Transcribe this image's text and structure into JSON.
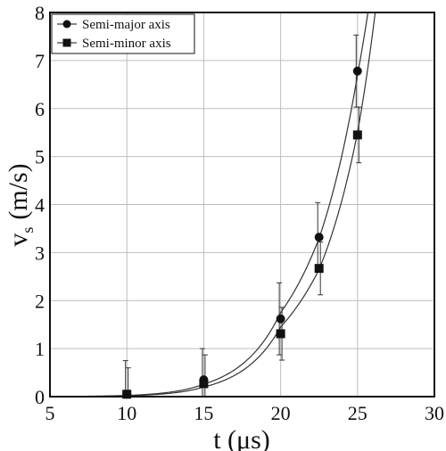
{
  "chart_data": {
    "type": "scatter",
    "title": "",
    "xlabel": "t (μs)",
    "ylabel": "v",
    "ylabel_subscript": "s",
    "ylabel_units": "(m/s)",
    "xlim": [
      5,
      30
    ],
    "ylim": [
      0,
      8
    ],
    "x_ticks": [
      "5",
      "10",
      "15",
      "20",
      "25",
      "30"
    ],
    "y_ticks": [
      "0",
      "1",
      "2",
      "3",
      "4",
      "5",
      "6",
      "7",
      "8"
    ],
    "grid": true,
    "legend_position": "top-left",
    "series": [
      {
        "name": "Semi-major axis",
        "marker": "circle",
        "points": [
          {
            "x": 10,
            "y": 0.05,
            "err": 0.7
          },
          {
            "x": 15,
            "y": 0.35,
            "err": 0.65
          },
          {
            "x": 20,
            "y": 1.62,
            "err": 0.75
          },
          {
            "x": 22.5,
            "y": 3.32,
            "err": 0.72
          },
          {
            "x": 25,
            "y": 6.78,
            "err": 0.75
          }
        ],
        "fit_curve": [
          {
            "x": 5,
            "y": 0.003
          },
          {
            "x": 10,
            "y": 0.025
          },
          {
            "x": 15,
            "y": 0.26
          },
          {
            "x": 20,
            "y": 1.75
          },
          {
            "x": 22.5,
            "y": 3.3
          },
          {
            "x": 25,
            "y": 6.7
          },
          {
            "x": 26,
            "y": 8.7
          }
        ]
      },
      {
        "name": "Semi-minor axis",
        "marker": "square",
        "points": [
          {
            "x": 10,
            "y": 0.05,
            "err": 0.55
          },
          {
            "x": 15,
            "y": 0.27,
            "err": 0.6
          },
          {
            "x": 20,
            "y": 1.31,
            "err": 0.55
          },
          {
            "x": 22.5,
            "y": 2.67,
            "err": 0.55
          },
          {
            "x": 25,
            "y": 5.45,
            "err": 0.58
          }
        ],
        "fit_curve": [
          {
            "x": 5,
            "y": 0.002
          },
          {
            "x": 10,
            "y": 0.018
          },
          {
            "x": 15,
            "y": 0.2
          },
          {
            "x": 20,
            "y": 1.45
          },
          {
            "x": 22.5,
            "y": 2.65
          },
          {
            "x": 25,
            "y": 5.5
          },
          {
            "x": 26.3,
            "y": 8.4
          }
        ]
      }
    ]
  }
}
